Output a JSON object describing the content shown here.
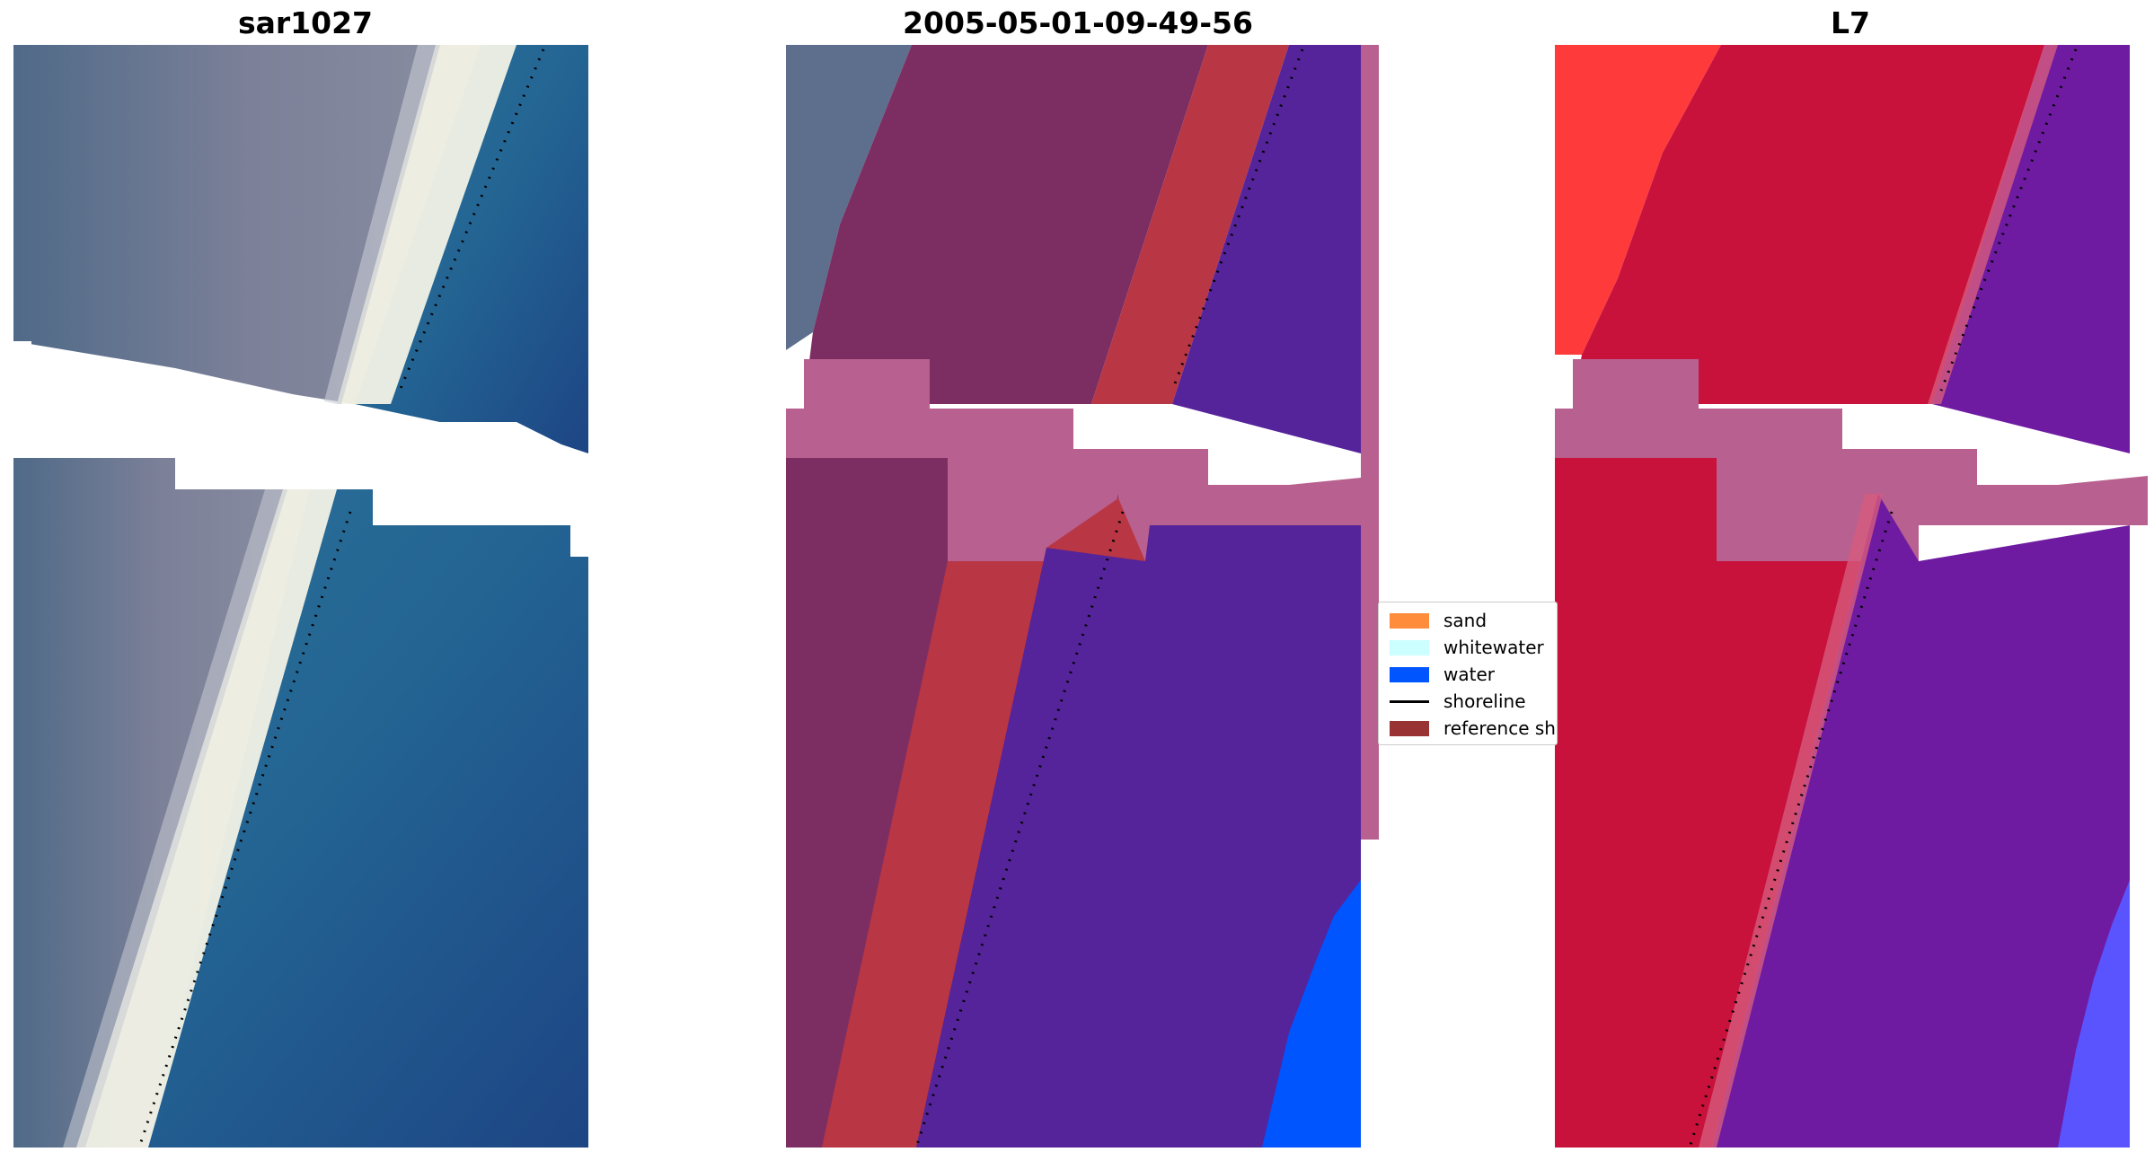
{
  "panels": {
    "left_title": "sar1027",
    "middle_title": "2005-05-01-09-49-56",
    "right_title": "L7"
  },
  "legend": {
    "items": [
      {
        "label": "sand",
        "color": "#ff8c3a"
      },
      {
        "label": "whitewater",
        "color": "#ccffff"
      },
      {
        "label": "water",
        "color": "#0055ff"
      },
      {
        "label": "shoreline",
        "color": "#000000"
      },
      {
        "label": "reference shoreline",
        "color": "#993333"
      }
    ]
  },
  "colors": {
    "sand_line": "#f2f2e6",
    "shallow_water": "#2c6e94",
    "deep_water": "#1f4a86",
    "land_rgb": "#6f7890",
    "land_class": "#7c2e63",
    "sand_class": "#b93644",
    "water_class": "#55239a",
    "nodata_class": "#b8608f",
    "ocean_class": "#0055ff",
    "mndwi_land": "#c8113b",
    "mndwi_water": "#6e1ba2",
    "mndwi_bright": "#ff2a2a",
    "mndwi_ocean": "#5a54ff"
  }
}
